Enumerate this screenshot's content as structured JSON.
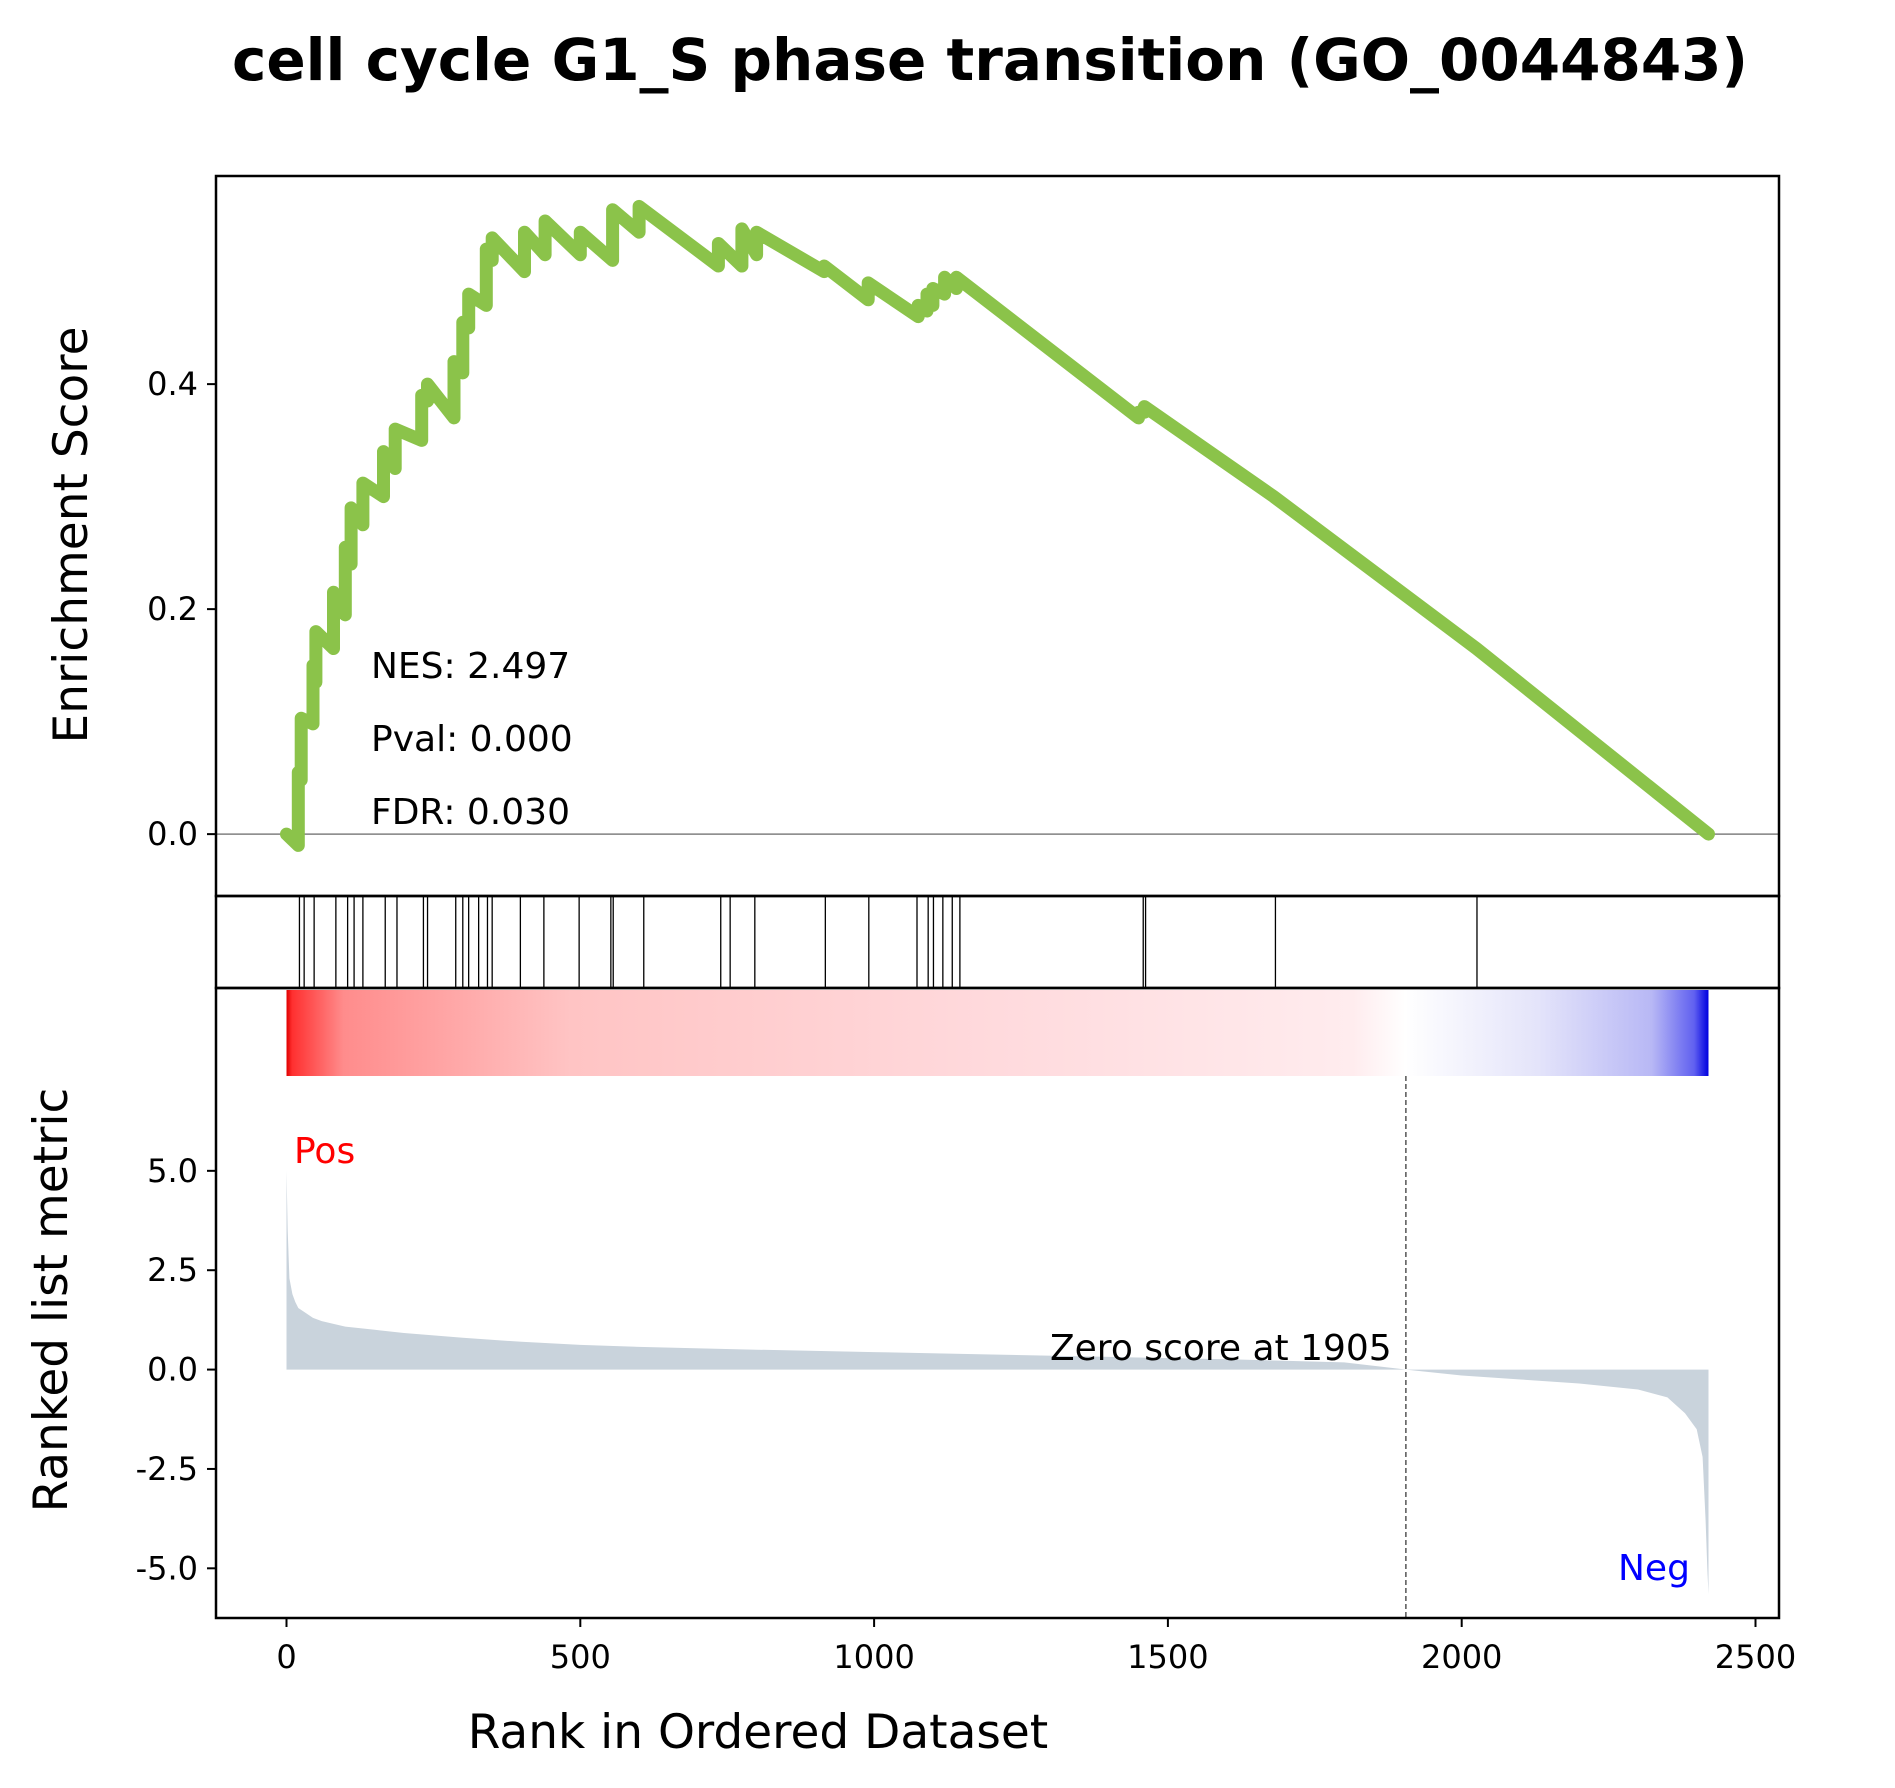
{
  "chart_data": {
    "type": "line",
    "title": "cell cycle G1_S phase transition (GO_0044843)",
    "xlabel": "Rank in Ordered Dataset",
    "xlim": [
      -120,
      2540
    ],
    "xticks": [
      0,
      500,
      1000,
      1500,
      2000,
      2500
    ],
    "xtick_labels": [
      "0",
      "500",
      "1000",
      "1500",
      "2000",
      "2500"
    ],
    "enrichment": {
      "ylabel": "Enrichment Score",
      "ylim": [
        -0.055,
        0.585
      ],
      "yticks": [
        0.0,
        0.2,
        0.4
      ],
      "ytick_labels": [
        "0.0",
        "0.2",
        "0.4"
      ],
      "color": "#8bc34a",
      "baseline": 0.0,
      "stats": {
        "nes": "NES: 2.497",
        "pval": "Pval: 0.000",
        "fdr": "FDR: 0.030"
      },
      "x": [
        0,
        20,
        20,
        25,
        25,
        45,
        45,
        50,
        50,
        80,
        80,
        100,
        100,
        110,
        110,
        130,
        130,
        165,
        165,
        185,
        185,
        230,
        230,
        240,
        240,
        285,
        285,
        300,
        300,
        310,
        310,
        340,
        340,
        350,
        350,
        405,
        405,
        440,
        440,
        500,
        500,
        555,
        555,
        600,
        600,
        735,
        735,
        775,
        775,
        800,
        800,
        915,
        915,
        990,
        990,
        1075,
        1075,
        1090,
        1090,
        1100,
        1100,
        1120,
        1120,
        1140,
        1140,
        1450,
        1450,
        1460,
        1460,
        1680,
        1680,
        2025,
        2025,
        2420
      ],
      "y": [
        0.0,
        -0.01,
        0.055,
        0.048,
        0.103,
        0.098,
        0.15,
        0.135,
        0.18,
        0.165,
        0.215,
        0.195,
        0.255,
        0.24,
        0.29,
        0.275,
        0.312,
        0.3,
        0.34,
        0.325,
        0.36,
        0.35,
        0.39,
        0.385,
        0.4,
        0.37,
        0.42,
        0.41,
        0.455,
        0.45,
        0.48,
        0.47,
        0.52,
        0.51,
        0.53,
        0.5,
        0.535,
        0.515,
        0.545,
        0.515,
        0.535,
        0.51,
        0.555,
        0.535,
        0.558,
        0.505,
        0.525,
        0.505,
        0.538,
        0.515,
        0.535,
        0.5,
        0.505,
        0.475,
        0.49,
        0.46,
        0.47,
        0.465,
        0.48,
        0.47,
        0.485,
        0.48,
        0.495,
        0.485,
        0.495,
        0.37,
        0.375,
        0.375,
        0.38,
        0.3,
        0.3,
        0.165,
        0.165,
        0.0
      ]
    },
    "hits": [
      22,
      30,
      47,
      84,
      104,
      115,
      130,
      168,
      188,
      233,
      240,
      288,
      300,
      310,
      327,
      342,
      350,
      398,
      438,
      498,
      552,
      556,
      608,
      739,
      755,
      797,
      917,
      991,
      1073,
      1092,
      1101,
      1117,
      1133,
      1146,
      1458,
      1462,
      1683,
      2026
    ],
    "ranked": {
      "ylabel": "Ranked list metric",
      "ylim": [
        -6.25,
        9.6
      ],
      "yticks": [
        5.0,
        2.5,
        0.0,
        -2.5,
        -5.0
      ],
      "ytick_labels": [
        "5.0",
        "2.5",
        "0.0",
        "-2.5",
        "-5.0"
      ],
      "fill_color": "#c9d3dc",
      "n_genes": 2420,
      "zero_crossing": 1905,
      "zero_label": "Zero score at 1905",
      "pos_label": "Pos",
      "neg_label": "Neg",
      "pos_color": "#ff0000",
      "neg_color": "#0000ff",
      "x": [
        0,
        2,
        5,
        10,
        15,
        20,
        30,
        45,
        60,
        80,
        100,
        150,
        200,
        300,
        400,
        500,
        600,
        800,
        1000,
        1200,
        1400,
        1600,
        1800,
        1905,
        2000,
        2100,
        2200,
        2300,
        2350,
        2380,
        2400,
        2410,
        2415,
        2418,
        2420
      ],
      "y": [
        5.0,
        3.5,
        2.3,
        1.9,
        1.7,
        1.55,
        1.45,
        1.3,
        1.22,
        1.15,
        1.08,
        1.0,
        0.92,
        0.8,
        0.7,
        0.62,
        0.57,
        0.5,
        0.44,
        0.38,
        0.32,
        0.26,
        0.18,
        0.0,
        -0.15,
        -0.25,
        -0.35,
        -0.5,
        -0.7,
        -1.1,
        -1.5,
        -2.2,
        -3.8,
        -5.0,
        -5.65
      ]
    }
  }
}
